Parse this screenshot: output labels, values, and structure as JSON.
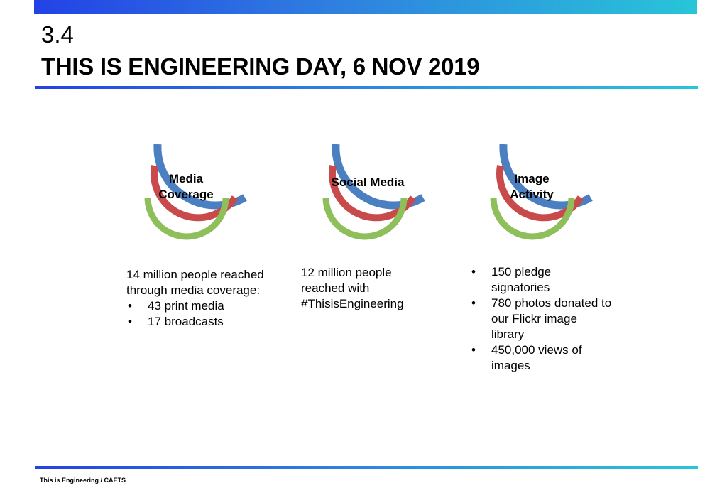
{
  "header": {
    "number": "3.4",
    "title": "THIS IS ENGINEERING DAY, 6 NOV 2019"
  },
  "colors": {
    "outer_ring": "#4a7fc1",
    "middle_ring": "#c94a4a",
    "inner_ring": "#8fbf5a",
    "accent_blue": "#2342e6",
    "accent_teal": "#28c5d8"
  },
  "panels": [
    {
      "label_line1": "Media",
      "label_line2": "Coverage",
      "intro": "14 million people reached through media coverage:",
      "bullets": [
        "43 print media",
        "17 broadcasts"
      ]
    },
    {
      "label_line1": "Social Media",
      "intro_line1": "12 million people",
      "intro_line2": "reached with",
      "intro_line3": "#ThisisEngineering"
    },
    {
      "label_line1": "Image",
      "label_line2": "Activity",
      "bullets": [
        "150 pledge signatories",
        "780 photos donated to our Flickr image library",
        "450,000 views of images"
      ]
    }
  ],
  "footer": {
    "text": "This is Engineering / CAETS"
  }
}
